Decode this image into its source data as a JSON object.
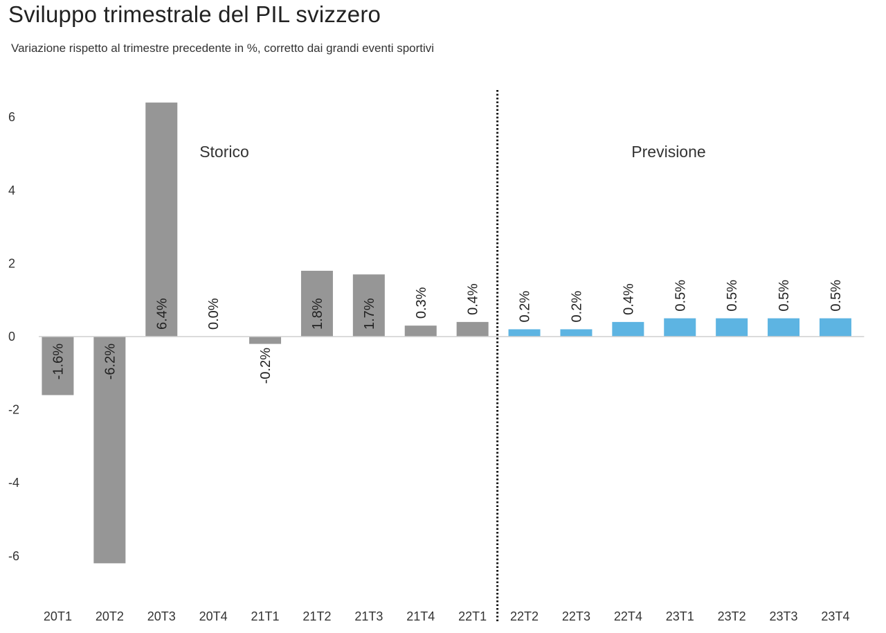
{
  "chart_data": {
    "type": "bar",
    "title": "Sviluppo trimestrale del PIL svizzero",
    "subtitle": "Variazione rispetto al trimestre precedente in %, corretto dai grandi eventi sportivi",
    "categories": [
      "20T1",
      "20T2",
      "20T3",
      "20T4",
      "21T1",
      "21T2",
      "21T3",
      "21T4",
      "22T1",
      "22T2",
      "22T3",
      "22T4",
      "23T1",
      "23T2",
      "23T3",
      "23T4"
    ],
    "values": [
      -1.6,
      -6.2,
      6.4,
      0.0,
      -0.2,
      1.8,
      1.7,
      0.3,
      0.4,
      0.2,
      0.2,
      0.4,
      0.5,
      0.5,
      0.5,
      0.5
    ],
    "data_labels": [
      "-1.6%",
      "-6.2%",
      "6.4%",
      "0.0%",
      "-0.2%",
      "1.8%",
      "1.7%",
      "0.3%",
      "0.4%",
      "0.2%",
      "0.2%",
      "0.4%",
      "0.5%",
      "0.5%",
      "0.5%",
      "0.5%"
    ],
    "yticks": [
      -6,
      -4,
      -2,
      0,
      2,
      4,
      6
    ],
    "ylim": [
      -7.3,
      6.6
    ],
    "xlabel": "",
    "ylabel": "",
    "grid": false,
    "segments": [
      {
        "label": "Storico",
        "from": "20T1",
        "to": "22T1",
        "color": "#969696"
      },
      {
        "label": "Previsione",
        "from": "22T2",
        "to": "23T4",
        "color": "#5db4e2"
      }
    ],
    "divider_after": "22T1"
  }
}
